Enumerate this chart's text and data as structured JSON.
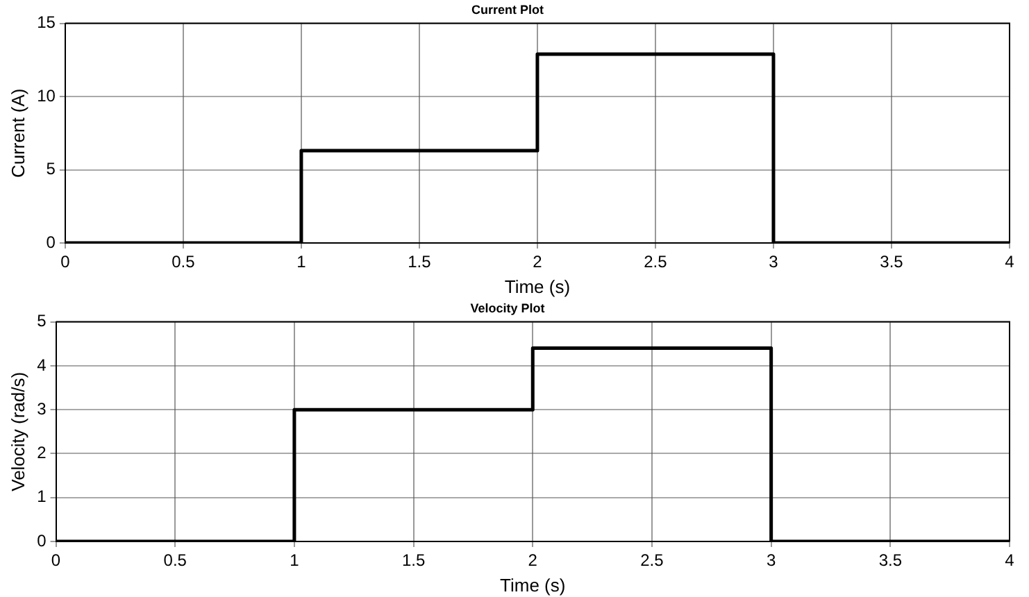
{
  "chart_data": [
    {
      "type": "step",
      "title": "Current Plot",
      "xlabel": "Time (s)",
      "ylabel": "Current (A)",
      "x": [
        0,
        1,
        2,
        3,
        4
      ],
      "series": [
        {
          "color": "#000000",
          "values": [
            0,
            6.3,
            12.9,
            0,
            0
          ]
        }
      ],
      "xlim": [
        0,
        4
      ],
      "xticks": [
        0,
        0.5,
        1,
        1.5,
        2,
        2.5,
        3,
        3.5,
        4
      ],
      "ylim": [
        0,
        15
      ],
      "yticks": [
        0,
        5,
        10,
        15
      ],
      "grid": true,
      "legend": false
    },
    {
      "type": "step",
      "title": "Velocity Plot",
      "xlabel": "Time (s)",
      "ylabel": "Velocity (rad/s)",
      "x": [
        0,
        1,
        2,
        3,
        4
      ],
      "series": [
        {
          "color": "#000000",
          "values": [
            0,
            3,
            4.4,
            0,
            0
          ]
        }
      ],
      "xlim": [
        0,
        4
      ],
      "xticks": [
        0,
        0.5,
        1,
        1.5,
        2,
        2.5,
        3,
        3.5,
        4
      ],
      "ylim": [
        0,
        5
      ],
      "yticks": [
        0,
        1,
        2,
        3,
        4,
        5
      ],
      "grid": true,
      "legend": false
    }
  ]
}
